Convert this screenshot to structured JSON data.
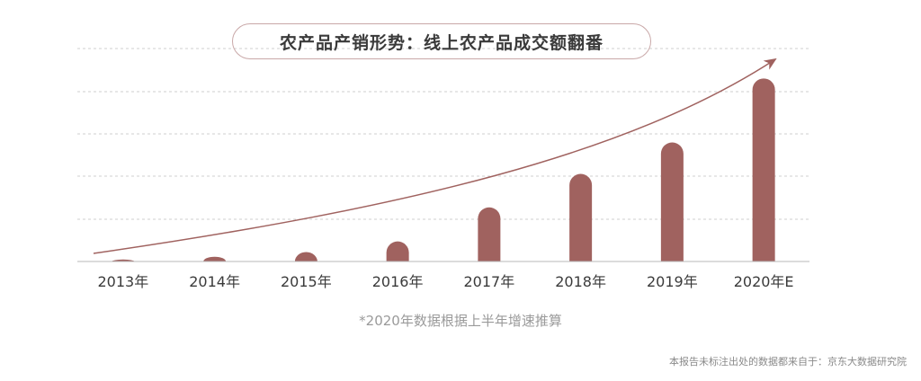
{
  "chart_data": {
    "type": "bar",
    "title": "农产品产销形势：线上农产品成交额翻番",
    "categories": [
      "2013年",
      "2014年",
      "2015年",
      "2016年",
      "2017年",
      "2018年",
      "2019年",
      "2020年E"
    ],
    "values": [
      1,
      2.4,
      4.8,
      10.2,
      27.5,
      44.5,
      60.5,
      93
    ],
    "ylim": [
      0,
      100
    ],
    "grid": true,
    "trend_arrow": true,
    "bar_color": "#a0625f",
    "arrow_color": "#a0625f",
    "grid_color": "#cfcfcf",
    "footnote": "*2020年数据根据上半年增速推算"
  },
  "source_note": "本报告未标注出处的数据都来自于：京东大数据研究院"
}
